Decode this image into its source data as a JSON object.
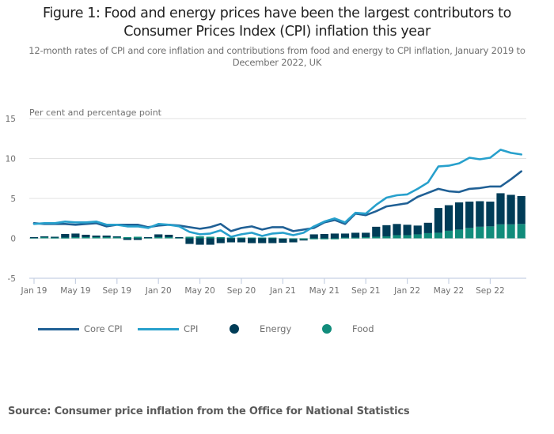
{
  "header": {
    "title_line1": "Figure 1: Food and energy prices have been the largest contributors to",
    "title_line2": "Consumer Prices Index (CPI) inflation this year",
    "subtitle_line1": "12-month rates of CPI and core inflation and contributions from food and energy to CPI inflation, January 2019 to",
    "subtitle_line2": "December 2022, UK"
  },
  "legend": {
    "items": [
      {
        "label": "Core CPI",
        "type": "line",
        "color": "#206095"
      },
      {
        "label": "CPI",
        "type": "line",
        "color": "#27a0cc"
      },
      {
        "label": "Energy",
        "type": "dot",
        "color": "#003c57"
      },
      {
        "label": "Food",
        "type": "dot",
        "color": "#118c7b"
      }
    ]
  },
  "source": "Source: Consumer price inflation from the Office for National Statistics",
  "chart_data": {
    "type": "bar+line",
    "title": "Figure 1: Food and energy prices have been the largest contributors to Consumer Prices Index (CPI) inflation this year",
    "subtitle": "12-month rates of CPI and core inflation and contributions from food and energy to CPI inflation, January 2019 to December 2022, UK",
    "ylabel": "Per cent and percentage point",
    "xlabel": "",
    "ylim": [
      -5,
      15
    ],
    "yticks": [
      15,
      10,
      5,
      0,
      -5
    ],
    "grid": true,
    "legend_position": "bottom",
    "x": [
      "Jan 19",
      "Feb 19",
      "Mar 19",
      "Apr 19",
      "May 19",
      "Jun 19",
      "Jul 19",
      "Aug 19",
      "Sep 19",
      "Oct 19",
      "Nov 19",
      "Dec 19",
      "Jan 20",
      "Feb 20",
      "Mar 20",
      "Apr 20",
      "May 20",
      "Jun 20",
      "Jul 20",
      "Aug 20",
      "Sep 20",
      "Oct 20",
      "Nov 20",
      "Dec 20",
      "Jan 21",
      "Feb 21",
      "Mar 21",
      "Apr 21",
      "May 21",
      "Jun 21",
      "Jul 21",
      "Aug 21",
      "Sep 21",
      "Oct 21",
      "Nov 21",
      "Dec 21",
      "Jan 22",
      "Feb 22",
      "Mar 22",
      "Apr 22",
      "May 22",
      "Jun 22",
      "Jul 22",
      "Aug 22",
      "Sep 22",
      "Oct 22",
      "Nov 22",
      "Dec 22"
    ],
    "xtick_labels": [
      "Jan 19",
      "May 19",
      "Sep 19",
      "Jan 20",
      "May 20",
      "Sep 20",
      "Jan 21",
      "May 21",
      "Sep 21",
      "Jan 22",
      "May 22",
      "Sep 22"
    ],
    "series": [
      {
        "name": "Core CPI",
        "kind": "line",
        "color": "#206095",
        "values": [
          1.9,
          1.8,
          1.8,
          1.8,
          1.7,
          1.8,
          1.9,
          1.5,
          1.7,
          1.7,
          1.7,
          1.4,
          1.6,
          1.7,
          1.6,
          1.4,
          1.2,
          1.4,
          1.8,
          0.9,
          1.3,
          1.5,
          1.1,
          1.4,
          1.4,
          0.9,
          1.1,
          1.3,
          2.0,
          2.3,
          1.8,
          3.1,
          2.9,
          3.4,
          4.0,
          4.2,
          4.4,
          5.2,
          5.7,
          6.2,
          5.9,
          5.8,
          6.2,
          6.3,
          6.5,
          6.5,
          7.4,
          8.4
        ]
      },
      {
        "name": "CPI",
        "kind": "line",
        "color": "#27a0cc",
        "values": [
          1.8,
          1.9,
          1.9,
          2.1,
          2.0,
          2.0,
          2.1,
          1.7,
          1.7,
          1.5,
          1.5,
          1.3,
          1.8,
          1.7,
          1.5,
          0.8,
          0.5,
          0.6,
          1.0,
          0.2,
          0.5,
          0.7,
          0.3,
          0.6,
          0.7,
          0.4,
          0.7,
          1.5,
          2.1,
          2.5,
          2.0,
          3.2,
          3.1,
          4.2,
          5.1,
          5.4,
          5.5,
          6.2,
          7.0,
          9.0,
          9.1,
          9.4,
          10.1,
          9.9,
          10.1,
          11.1,
          10.7,
          10.5
        ]
      },
      {
        "name": "Energy",
        "kind": "bar",
        "color": "#003c57",
        "values": [
          0.05,
          0.1,
          0.1,
          0.45,
          0.45,
          0.3,
          0.2,
          0.2,
          0.1,
          -0.2,
          -0.2,
          0.05,
          0.35,
          0.3,
          0.05,
          -0.7,
          -0.8,
          -0.8,
          -0.6,
          -0.5,
          -0.5,
          -0.6,
          -0.6,
          -0.6,
          -0.5,
          -0.4,
          -0.1,
          0.5,
          0.55,
          0.6,
          0.5,
          0.6,
          0.55,
          1.25,
          1.4,
          1.4,
          1.3,
          1.1,
          1.3,
          3.1,
          3.2,
          3.4,
          3.3,
          3.2,
          3.1,
          3.9,
          3.7,
          3.5
        ]
      },
      {
        "name": "Food",
        "kind": "bar",
        "color": "#118c7b",
        "values": [
          0.1,
          0.15,
          0.1,
          0.1,
          0.15,
          0.15,
          0.15,
          0.15,
          0.15,
          0.15,
          0.2,
          0.1,
          0.15,
          0.15,
          0.1,
          0.2,
          0.25,
          0.2,
          0.15,
          0.1,
          0.1,
          0.1,
          0.1,
          0.1,
          -0.05,
          -0.1,
          -0.15,
          0.0,
          -0.05,
          0.0,
          0.1,
          0.1,
          0.15,
          0.2,
          0.25,
          0.4,
          0.4,
          0.5,
          0.65,
          0.7,
          0.95,
          1.1,
          1.3,
          1.45,
          1.5,
          1.75,
          1.75,
          1.8
        ]
      }
    ]
  }
}
